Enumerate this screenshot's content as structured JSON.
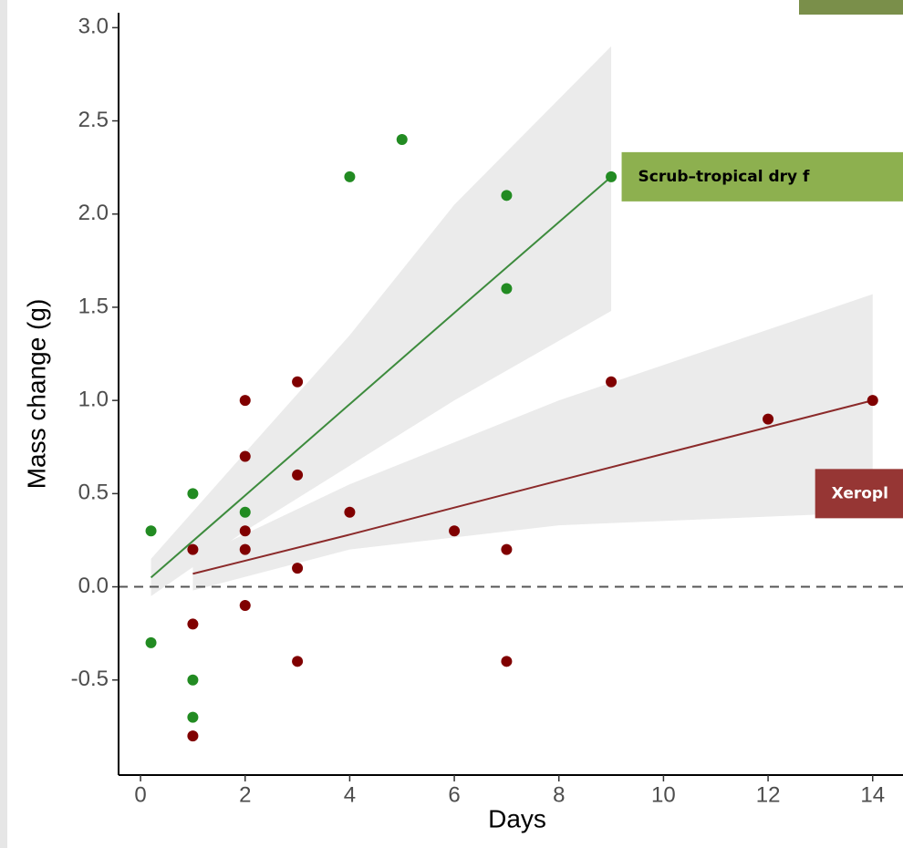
{
  "chart_data": {
    "type": "scatter",
    "xlabel": "Days",
    "ylabel": "Mass change (g)",
    "xlim": [
      -0.42,
      14.58
    ],
    "ylim": [
      -1.01,
      3.08
    ],
    "xticks": [
      0,
      2,
      4,
      6,
      8,
      10,
      12,
      14
    ],
    "yticks": [
      {
        "value": -0.5,
        "label": "-0.5"
      },
      {
        "value": 0,
        "label": "0.0"
      },
      {
        "value": 0.5,
        "label": "0.5"
      },
      {
        "value": 1,
        "label": "1.0"
      },
      {
        "value": 1.5,
        "label": "1.5"
      },
      {
        "value": 2,
        "label": "2.0"
      },
      {
        "value": 2.5,
        "label": "2.5"
      },
      {
        "value": 3,
        "label": "3.0"
      }
    ],
    "reference_line": 0,
    "series": [
      {
        "color": "#228b22",
        "x": [
          0.2,
          0.2,
          1,
          1,
          1,
          2,
          4,
          5,
          7,
          7,
          9
        ],
        "values": [
          0.3,
          -0.3,
          0.5,
          -0.5,
          -0.7,
          0.4,
          2.2,
          2.4,
          2.1,
          1.6,
          2.2
        ]
      },
      {
        "color": "#800000",
        "x": [
          1,
          1,
          1,
          2,
          2,
          2,
          2,
          2,
          3,
          3,
          3,
          3,
          4,
          6,
          7,
          7,
          9,
          12,
          14
        ],
        "values": [
          0.2,
          -0.2,
          -0.8,
          1.0,
          0.7,
          0.3,
          0.2,
          -0.1,
          1.1,
          0.6,
          0.1,
          -0.4,
          0.4,
          0.3,
          0.2,
          -0.4,
          1.1,
          0.9,
          1.0
        ]
      }
    ],
    "fits": [
      {
        "color": "#3d8b3d",
        "x": [
          0.2,
          2,
          4,
          6,
          9
        ],
        "values": [
          0.05,
          0.49,
          0.98,
          1.47,
          2.2
        ],
        "lower": [
          -0.05,
          0.3,
          0.65,
          1.0,
          1.48
        ],
        "upper": [
          0.15,
          0.72,
          1.35,
          2.05,
          2.9
        ]
      },
      {
        "color": "#8b2a2a",
        "x": [
          1,
          4,
          8,
          14
        ],
        "values": [
          0.07,
          0.28,
          0.57,
          1.0
        ],
        "lower": [
          -0.02,
          0.2,
          0.33,
          0.4
        ],
        "upper": [
          0.15,
          0.55,
          1.0,
          1.57
        ]
      }
    ],
    "annotations": [
      {
        "text": "Scrub–tropical dry f",
        "color": "#8db04f",
        "x": 9.2,
        "y": 2.2
      },
      {
        "text": "Xeropl",
        "color": "#963634",
        "x": 12.9,
        "y": 0.5
      }
    ]
  }
}
